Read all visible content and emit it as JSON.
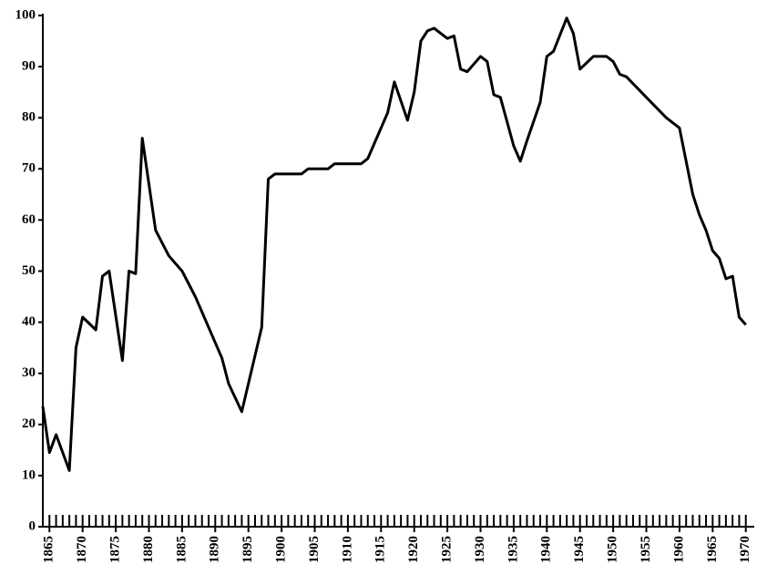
{
  "chart_data": {
    "type": "line",
    "x": [
      1864,
      1865,
      1866,
      1868,
      1869,
      1870,
      1872,
      1873,
      1874,
      1876,
      1877,
      1878,
      1879,
      1881,
      1883,
      1885,
      1887,
      1889,
      1891,
      1892,
      1894,
      1897,
      1898,
      1899,
      1903,
      1904,
      1907,
      1908,
      1912,
      1913,
      1916,
      1917,
      1919,
      1920,
      1921,
      1922,
      1923,
      1925,
      1926,
      1927,
      1928,
      1930,
      1931,
      1932,
      1933,
      1935,
      1936,
      1937,
      1939,
      1940,
      1941,
      1943,
      1944,
      1945,
      1947,
      1949,
      1950,
      1951,
      1952,
      1955,
      1958,
      1960,
      1962,
      1963,
      1964,
      1965,
      1966,
      1967,
      1968,
      1969,
      1970
    ],
    "values": [
      23.5,
      14.5,
      18,
      11,
      35,
      41,
      38.5,
      49,
      50,
      32.5,
      50,
      49.5,
      76,
      58,
      53,
      50,
      45,
      39,
      33,
      28,
      22.5,
      39,
      68,
      69,
      69,
      70,
      70,
      71,
      71,
      72,
      81,
      87,
      79.5,
      85,
      95,
      97,
      97.5,
      95.5,
      96,
      89.5,
      89,
      92,
      91,
      84.5,
      84,
      74.5,
      71.5,
      75.5,
      83,
      92,
      93,
      99.5,
      96.5,
      89.5,
      92,
      92,
      91,
      88.5,
      88,
      84,
      80,
      78,
      65,
      61,
      58,
      54,
      52.5,
      48.5,
      49,
      41,
      39.5
    ],
    "color": "#000000",
    "xlim": [
      1864,
      1971
    ],
    "xticks": [
      1865,
      1870,
      1875,
      1880,
      1885,
      1890,
      1895,
      1900,
      1905,
      1910,
      1915,
      1920,
      1925,
      1930,
      1935,
      1940,
      1945,
      1950,
      1955,
      1960,
      1965,
      1970
    ],
    "xminorticks": [
      1865,
      1866,
      1867,
      1868,
      1869,
      1870,
      1871,
      1872,
      1873,
      1874,
      1875,
      1876,
      1877,
      1878,
      1879,
      1880,
      1881,
      1882,
      1883,
      1884,
      1885,
      1886,
      1887,
      1888,
      1889,
      1890,
      1891,
      1892,
      1893,
      1894,
      1895,
      1896,
      1897,
      1898,
      1899,
      1900,
      1901,
      1902,
      1903,
      1904,
      1905,
      1906,
      1907,
      1908,
      1909,
      1910,
      1911,
      1912,
      1913,
      1914,
      1915,
      1916,
      1917,
      1918,
      1919,
      1920,
      1921,
      1922,
      1923,
      1924,
      1925,
      1926,
      1927,
      1928,
      1929,
      1930,
      1931,
      1932,
      1933,
      1934,
      1935,
      1936,
      1937,
      1938,
      1939,
      1940,
      1941,
      1942,
      1943,
      1944,
      1945,
      1946,
      1947,
      1948,
      1949,
      1950,
      1951,
      1952,
      1953,
      1954,
      1955,
      1956,
      1957,
      1958,
      1959,
      1960,
      1961,
      1962,
      1963,
      1964,
      1965,
      1966,
      1967,
      1968,
      1969,
      1970
    ],
    "ylim": [
      0,
      100
    ],
    "yticks": [
      0,
      10,
      20,
      30,
      40,
      50,
      60,
      70,
      80,
      90,
      100
    ]
  }
}
